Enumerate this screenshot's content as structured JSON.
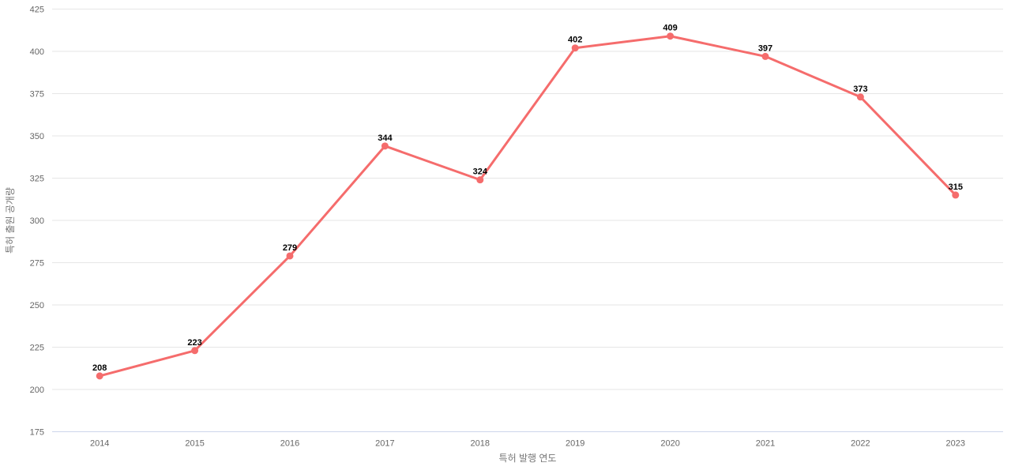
{
  "chart_data": {
    "type": "line",
    "categories": [
      "2014",
      "2015",
      "2016",
      "2017",
      "2018",
      "2019",
      "2020",
      "2021",
      "2022",
      "2023"
    ],
    "series": [
      {
        "name": "특허 출원 공개량",
        "values": [
          208,
          223,
          279,
          344,
          324,
          402,
          409,
          397,
          373,
          315
        ]
      }
    ],
    "title": "",
    "xlabel": "특허 발행 연도",
    "ylabel": "특허 출원 공개량",
    "ylim": [
      175,
      425
    ],
    "ytick_step": 25,
    "yticks": [
      175,
      200,
      225,
      250,
      275,
      300,
      325,
      350,
      375,
      400,
      425
    ],
    "grid": true,
    "legend": false,
    "data_labels": true,
    "colors": {
      "line": "#f56c6c",
      "marker": "#f56c6c",
      "grid": "#e6e6e6",
      "axis_line": "#ccd6eb",
      "tick_label": "#666666",
      "axis_title": "#777777",
      "data_label": "#000000",
      "background": "#ffffff"
    }
  }
}
